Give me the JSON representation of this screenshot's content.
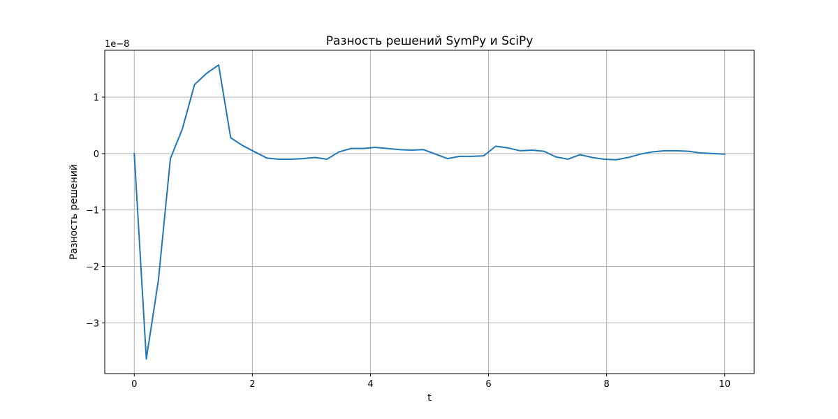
{
  "chart_data": {
    "type": "line",
    "title": "Разность решений SymPy и SciPy",
    "xlabel": "t",
    "ylabel": "Разность решений",
    "y_offset_label": "1e−8",
    "y_scale_factor": 1e-08,
    "xlim": [
      -0.5,
      10.5
    ],
    "ylim": [
      -3.9,
      1.83
    ],
    "x_ticks": [
      0,
      2,
      4,
      6,
      8,
      10
    ],
    "x_tick_labels": [
      "0",
      "2",
      "4",
      "6",
      "8",
      "10"
    ],
    "y_ticks": [
      -3,
      -2,
      -1,
      0,
      1
    ],
    "y_tick_labels": [
      "−3",
      "−2",
      "−1",
      "0",
      "1"
    ],
    "grid": true,
    "legend": "none",
    "series_color": "#1f77b4",
    "series": [
      {
        "x": [
          0,
          0.204,
          0.408,
          0.612,
          0.816,
          1.02,
          1.224,
          1.429,
          1.633,
          1.837,
          2.041,
          2.245,
          2.449,
          2.653,
          2.857,
          3.061,
          3.265,
          3.469,
          3.673,
          3.878,
          4.082,
          4.286,
          4.49,
          4.694,
          4.898,
          5.102,
          5.306,
          5.51,
          5.714,
          5.918,
          6.122,
          6.327,
          6.531,
          6.735,
          6.939,
          7.143,
          7.347,
          7.551,
          7.755,
          7.959,
          8.163,
          8.367,
          8.571,
          8.776,
          8.98,
          9.184,
          9.388,
          9.592,
          9.796,
          10.0
        ],
        "y": [
          0.0,
          -3.64,
          -2.25,
          -0.09,
          0.44,
          1.22,
          1.42,
          1.57,
          0.28,
          0.14,
          0.03,
          -0.08,
          -0.1,
          -0.1,
          -0.09,
          -0.07,
          -0.1,
          0.03,
          0.09,
          0.09,
          0.11,
          0.09,
          0.07,
          0.06,
          0.07,
          -0.01,
          -0.09,
          -0.05,
          -0.05,
          -0.04,
          0.13,
          0.1,
          0.05,
          0.06,
          0.04,
          -0.06,
          -0.1,
          -0.02,
          -0.07,
          -0.1,
          -0.11,
          -0.07,
          -0.01,
          0.03,
          0.05,
          0.05,
          0.04,
          0.01,
          0.0,
          -0.01
        ]
      }
    ]
  }
}
